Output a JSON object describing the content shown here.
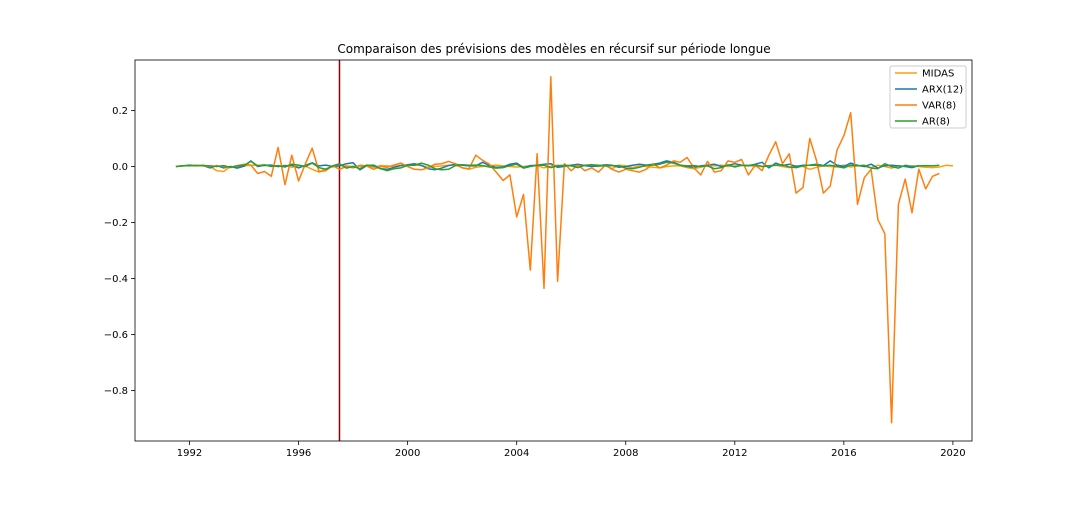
{
  "chart_data": {
    "type": "line",
    "title": "Comparaison des prévisions des modèles en récursif sur période longue",
    "xlabel": "",
    "ylabel": "",
    "xlim": [
      1990.0,
      2020.7
    ],
    "ylim": [
      -0.98,
      0.38
    ],
    "x_ticks": [
      1992,
      1996,
      2000,
      2004,
      2008,
      2012,
      2016,
      2020
    ],
    "x_tick_labels": [
      "1992",
      "1996",
      "2000",
      "2004",
      "2008",
      "2012",
      "2016",
      "2020"
    ],
    "y_ticks": [
      0.2,
      0.0,
      -0.2,
      -0.4,
      -0.6,
      -0.8
    ],
    "y_tick_labels": [
      "0.2",
      "0.0",
      "−0.2",
      "−0.4",
      "−0.6",
      "−0.8"
    ],
    "grid": false,
    "legend_position": "top-right",
    "vertical_line": {
      "x": 1997.5,
      "color": "#8b0000"
    },
    "x_start": 1991.5,
    "x_step": 0.25,
    "series": [
      {
        "name": "MIDAS",
        "color": "#ff9f0e",
        "values": [
          0.0,
          0.002,
          0.003,
          0.002,
          0.005,
          0.0,
          -0.015,
          -0.018,
          0.0,
          -0.003,
          0.002,
          0.004,
          0.005,
          0.003,
          0.002,
          0.0,
          0.004,
          -0.003,
          0.002,
          0.001,
          -0.01,
          -0.02,
          -0.008,
          -0.001,
          0.003,
          0.002,
          0.0,
          0.001,
          0.002,
          -0.003,
          0.003,
          0.002,
          0.0,
          0.004,
          0.003,
          0.005,
          0.003,
          -0.003,
          0.0,
          0.002,
          0.004,
          0.005,
          -0.004,
          -0.01,
          -0.003,
          0.0,
          0.003,
          0.005,
          0.002,
          0.0,
          -0.002,
          0.0,
          0.002,
          0.003,
          -0.005,
          0.001,
          0.004,
          0.002,
          0.005,
          0.002,
          0.004,
          0.003,
          0.0,
          0.003,
          -0.008,
          0.005,
          0.002,
          -0.004,
          0.002,
          0.0,
          -0.003,
          -0.005,
          0.0,
          0.002,
          0.002,
          -0.004,
          -0.008,
          -0.003,
          0.004,
          0.002,
          0.005,
          0.0,
          0.002,
          0.003,
          0.004,
          0.0,
          0.0,
          0.003,
          0.004,
          0.0,
          -0.004,
          0.002,
          0.0,
          -0.01,
          -0.003,
          0.002,
          0.0,
          -0.002,
          0.005,
          -0.002,
          0.003,
          0.0,
          -0.004,
          0.004,
          0.0,
          -0.006,
          0.002,
          0.0,
          0.002,
          0.0,
          -0.003,
          -0.004,
          -0.002,
          0.004,
          0.002
        ]
      },
      {
        "name": "ARX(12)",
        "color": "#1f77b4",
        "values": [
          0.0,
          0.002,
          0.005,
          0.003,
          0.003,
          -0.005,
          0.003,
          -0.005,
          0.0,
          -0.006,
          0.001,
          0.02,
          0.0,
          0.004,
          0.005,
          0.0,
          0.002,
          0.004,
          -0.005,
          0.004,
          0.013,
          0.002,
          0.005,
          0.0,
          0.002,
          0.01,
          0.013,
          -0.012,
          0.003,
          0.005,
          -0.008,
          -0.01,
          -0.003,
          0.003,
          0.006,
          0.01,
          0.004,
          -0.008,
          -0.012,
          -0.006,
          0.003,
          0.008,
          0.004,
          0.002,
          0.002,
          0.015,
          0.003,
          -0.003,
          -0.002,
          0.008,
          0.012,
          -0.004,
          0.003,
          0.004,
          0.008,
          0.01,
          -0.003,
          0.0,
          0.004,
          0.008,
          0.003,
          0.0,
          0.002,
          0.006,
          0.004,
          -0.003,
          0.0,
          0.004,
          0.008,
          0.005,
          0.008,
          0.012,
          0.02,
          0.015,
          0.005,
          0.0,
          -0.003,
          0.002,
          0.005,
          0.008,
          0.0,
          0.004,
          0.01,
          0.005,
          0.003,
          0.008,
          0.015,
          -0.005,
          0.012,
          0.003,
          0.008,
          0.0,
          0.004,
          0.005,
          0.008,
          0.003,
          0.02,
          0.005,
          0.0,
          0.012,
          0.004,
          0.0,
          0.008,
          -0.006,
          0.003,
          0.004,
          0.002,
          0.0,
          -0.004,
          0.003
        ]
      },
      {
        "name": "VAR(8)",
        "color": "#ff7f0e",
        "values": [
          0.0,
          0.003,
          0.002,
          0.004,
          0.002,
          0.0,
          0.002,
          0.0,
          -0.004,
          0.003,
          0.008,
          0.005,
          -0.025,
          -0.018,
          -0.035,
          0.068,
          -0.065,
          0.04,
          -0.052,
          0.01,
          0.065,
          -0.018,
          -0.015,
          0.003,
          -0.01,
          0.0,
          -0.005,
          0.004,
          0.002,
          -0.01,
          0.0,
          -0.003,
          0.005,
          0.012,
          0.0,
          -0.01,
          -0.012,
          -0.005,
          0.008,
          0.01,
          0.018,
          0.01,
          -0.005,
          -0.008,
          0.04,
          0.022,
          0.008,
          -0.02,
          -0.05,
          -0.03,
          -0.18,
          -0.1,
          -0.37,
          0.045,
          -0.435,
          0.32,
          -0.41,
          0.01,
          -0.015,
          0.005,
          -0.015,
          -0.005,
          -0.02,
          0.005,
          -0.01,
          -0.02,
          -0.01,
          -0.015,
          -0.02,
          -0.01,
          0.01,
          -0.005,
          0.005,
          0.02,
          0.015,
          0.032,
          -0.005,
          -0.03,
          0.018,
          -0.02,
          -0.015,
          0.02,
          0.015,
          0.025,
          -0.03,
          0.005,
          -0.015,
          0.04,
          0.088,
          0.01,
          0.045,
          -0.095,
          -0.075,
          0.1,
          0.02,
          -0.095,
          -0.07,
          0.058,
          0.11,
          0.192,
          -0.135,
          -0.04,
          -0.01,
          -0.19,
          -0.24,
          -0.915,
          -0.135,
          -0.045,
          -0.165,
          -0.01,
          -0.08,
          -0.035,
          -0.025
        ]
      },
      {
        "name": "AR(8)",
        "color": "#2ca02c",
        "values": [
          0.0,
          0.002,
          0.003,
          0.003,
          0.003,
          0.002,
          0.0,
          0.003,
          -0.003,
          0.002,
          0.004,
          0.018,
          0.002,
          0.006,
          0.0,
          0.003,
          -0.002,
          0.008,
          0.005,
          0.0,
          0.012,
          -0.004,
          -0.01,
          0.002,
          0.01,
          -0.006,
          0.0,
          -0.008,
          0.005,
          0.002,
          -0.008,
          -0.015,
          -0.008,
          -0.005,
          0.004,
          0.004,
          0.012,
          0.005,
          -0.008,
          -0.012,
          -0.01,
          0.003,
          0.006,
          0.004,
          0.005,
          0.003,
          -0.002,
          -0.006,
          -0.004,
          0.003,
          0.008,
          -0.006,
          0.0,
          0.004,
          0.004,
          -0.004,
          0.002,
          0.004,
          0.002,
          -0.004,
          0.004,
          0.006,
          0.004,
          0.002,
          0.003,
          0.002,
          -0.006,
          -0.008,
          -0.003,
          0.004,
          0.005,
          0.008,
          0.015,
          0.012,
          0.004,
          0.002,
          0.003,
          0.0,
          0.002,
          -0.008,
          -0.004,
          0.006,
          -0.002,
          0.004,
          0.002,
          0.006,
          0.0,
          0.002,
          0.004,
          0.006,
          -0.002,
          -0.004,
          0.002,
          0.005,
          0.004,
          0.002,
          0.004,
          0.0,
          -0.005,
          0.005,
          0.002,
          0.004,
          -0.006,
          -0.008,
          0.01,
          0.0,
          -0.006,
          0.004,
          0.0,
          0.002,
          0.003,
          0.002,
          0.004
        ]
      }
    ]
  }
}
